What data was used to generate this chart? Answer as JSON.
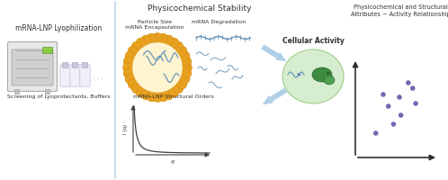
{
  "background_color": "#ffffff",
  "section1_title": "mRNA-LNP Lyophilization",
  "section1_subtitle": "Screening of Lyoprotectants, Buffers",
  "section2_title": "Physicochemical Stability",
  "section2_label1": "Particle Size\nmRNA Encapsulation",
  "section2_label2": "mRNA Degradation",
  "section2_label3": "mRNA-LNP Structural Orders",
  "section3_title": "Cellular Activity",
  "section4_title": "Physicochemical and Structural\nAttributes ~ Activity Relationship",
  "scatter_x": [
    0.18,
    0.35,
    0.5,
    0.68,
    0.28,
    0.52,
    0.72,
    0.42,
    0.62
  ],
  "scatter_y": [
    0.22,
    0.52,
    0.62,
    0.72,
    0.65,
    0.42,
    0.55,
    0.32,
    0.78
  ],
  "scatter_color": "#6655aa",
  "lnp_color_outer": "#e8a020",
  "arrow_color": "#b0cfe8",
  "curve_color": "#404040",
  "cell_oval_color": "#d0eac8",
  "font_color": "#303030",
  "divider_color": "#c0d8f0"
}
